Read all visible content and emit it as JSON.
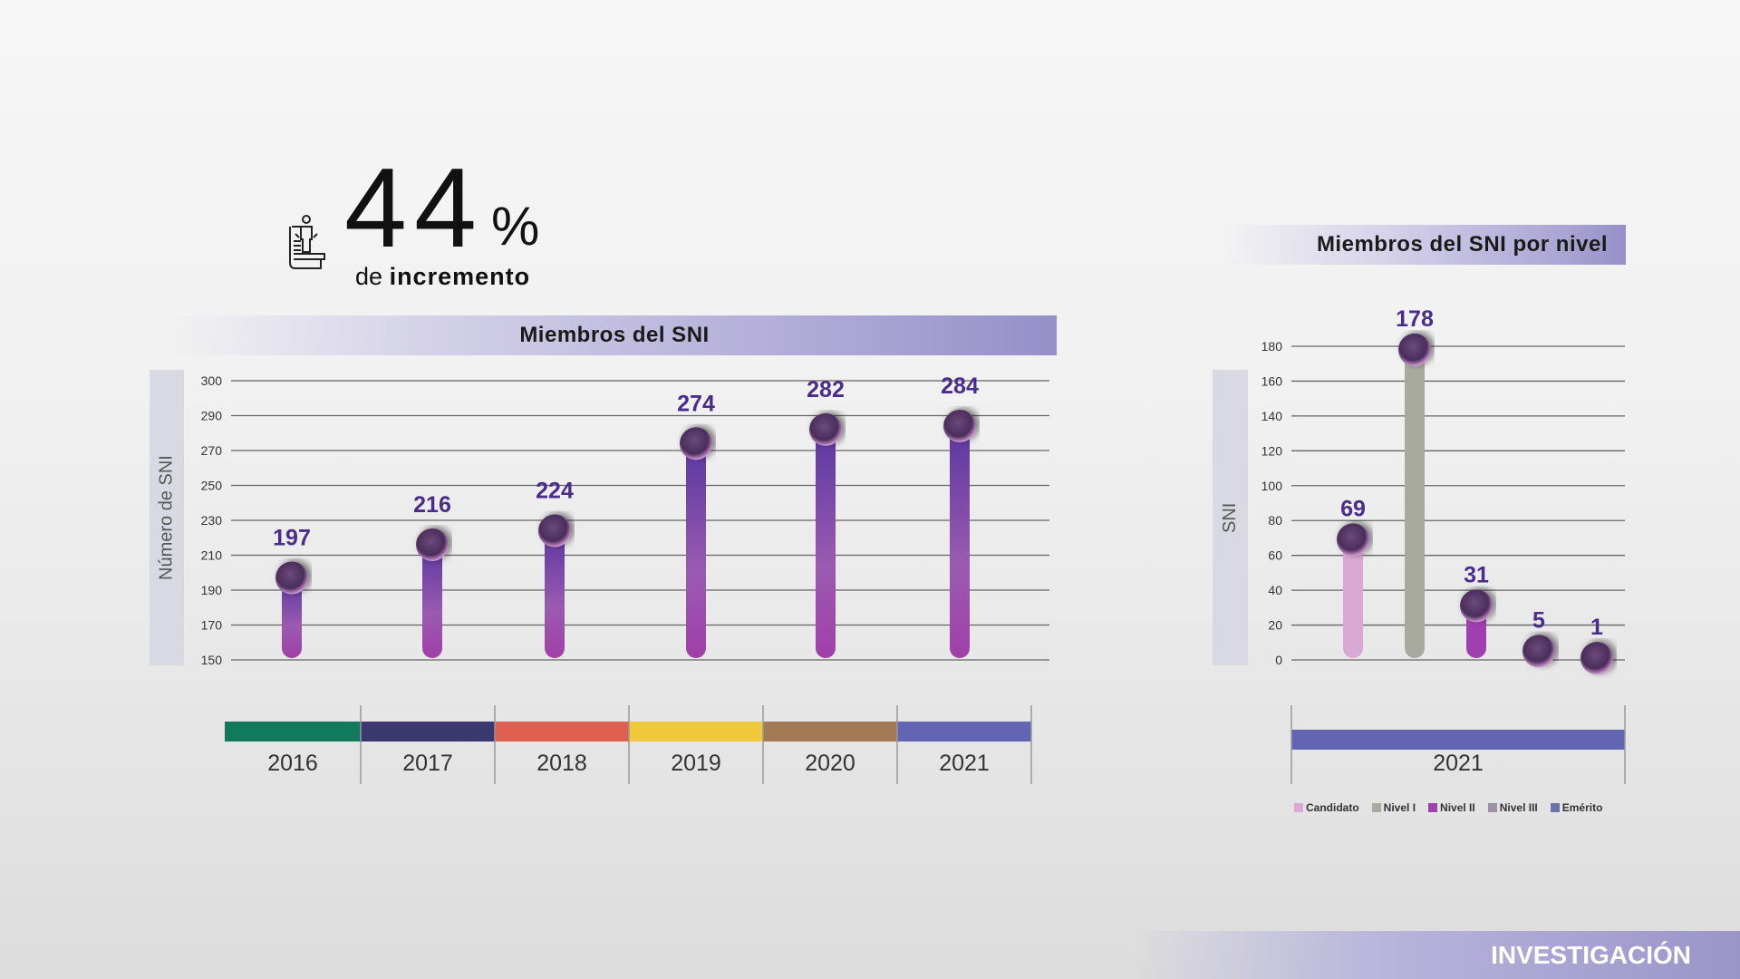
{
  "headline": {
    "value": "44",
    "unit": "%",
    "prefix": "de",
    "emphasis": "incremento",
    "icon": "researcher-document-icon"
  },
  "footer": {
    "label": "INVESTIGACIÓN"
  },
  "chart_data": [
    {
      "type": "bar",
      "title": "Miembros del SNI",
      "ylabel": "Número de SNI",
      "xlabel": "",
      "yticks": [
        150,
        170,
        190,
        210,
        230,
        250,
        270,
        290,
        300
      ],
      "categories": [
        "2016",
        "2017",
        "2018",
        "2019",
        "2020",
        "2021"
      ],
      "values": [
        197,
        216,
        224,
        274,
        282,
        284
      ],
      "category_colors": [
        "#127a5c",
        "#3b3870",
        "#e0604f",
        "#f0c93c",
        "#a47a55",
        "#6264b4"
      ],
      "bar_color": "#7a3ea8",
      "label_color": "#4a2d8a",
      "grid": true
    },
    {
      "type": "bar",
      "title": "Miembros del SNI por nivel",
      "ylabel": "SNI",
      "xlabel": "2021",
      "yticks": [
        0,
        20,
        40,
        60,
        80,
        100,
        120,
        140,
        160,
        180
      ],
      "categories": [
        "Candidato",
        "Nivel I",
        "Nivel II",
        "Nivel III",
        "Emérito"
      ],
      "values": [
        69,
        178,
        31,
        5,
        1
      ],
      "colors": [
        "#d9a8d4",
        "#a8aaa0",
        "#a03fb0",
        "#9c92a8",
        "#6a74a8"
      ],
      "year_color": "#6264b4",
      "label_color": "#4a2d8a",
      "legend": "bottom",
      "grid": true
    }
  ]
}
